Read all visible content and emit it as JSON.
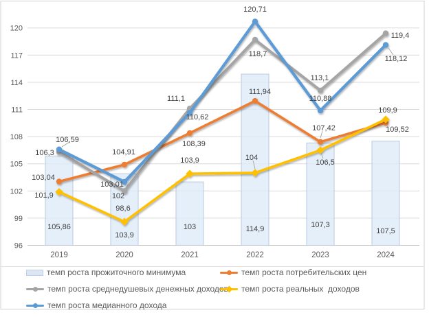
{
  "chart_data": {
    "type": "combo_bar_line",
    "title": "",
    "categories": [
      "2019",
      "2020",
      "2021",
      "2022",
      "2023",
      "2024"
    ],
    "bar_series": {
      "name": "темп роста прожиточного минимума",
      "values": [
        105.86,
        103.9,
        103,
        114.9,
        107.3,
        107.5
      ],
      "fill_color": "#DCE6F2"
    },
    "line_series": [
      {
        "name": "темп роста потребительских цен",
        "color": "#ED7D31",
        "values": [
          103.04,
          104.91,
          108.39,
          111.94,
          107.42,
          109.52
        ]
      },
      {
        "name": "темп роста среднедушевых денежных доходов",
        "color": "#A5A5A5",
        "values": [
          106.3,
          102,
          111.1,
          118.7,
          113.1,
          119.4
        ]
      },
      {
        "name": "темп роста реальных  доходов",
        "color": "#FFC000",
        "values": [
          101.9,
          98.6,
          103.9,
          104,
          106.5,
          109.9
        ]
      },
      {
        "name": "темп роста медианного дохода",
        "color": "#5B9BD5",
        "values": [
          106.59,
          103.01,
          110.62,
          120.71,
          110.88,
          118.12
        ]
      }
    ],
    "y_axis": {
      "min": 96,
      "max": 120,
      "step": 3,
      "ticks": [
        96,
        99,
        102,
        105,
        108,
        111,
        114,
        117,
        120
      ]
    },
    "grid": "horizontal",
    "legend_position": "bottom",
    "legend": [
      {
        "label": "темп роста прожиточного минимума",
        "swatch": "bar",
        "color": "#DCE6F2"
      },
      {
        "label": "темп роста потребительских цен",
        "swatch": "line",
        "color": "#ED7D31"
      },
      {
        "label": "темп роста среднедушевых денежных доходов",
        "swatch": "line",
        "color": "#A5A5A5"
      },
      {
        "label": "темп роста реальных  доходов",
        "swatch": "line",
        "color": "#FFC000"
      },
      {
        "label": "темп роста медианного дохода",
        "swatch": "line",
        "color": "#5B9BD5"
      }
    ]
  }
}
